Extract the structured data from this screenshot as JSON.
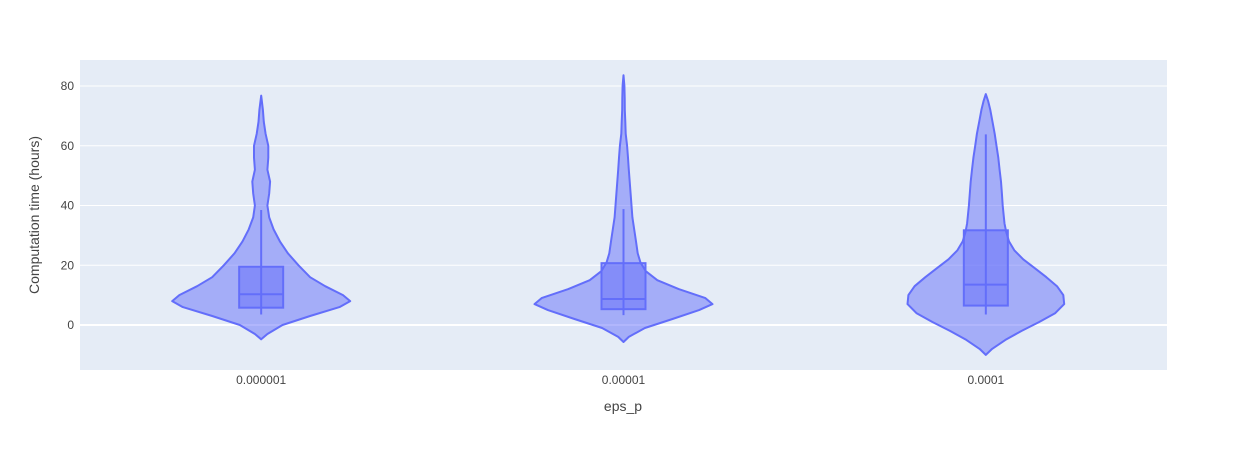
{
  "chart_data": {
    "type": "violin",
    "title": "",
    "xlabel": "eps_p",
    "ylabel": "Computation time (hours)",
    "ylim": [
      -15,
      88
    ],
    "yticks": [
      0,
      20,
      40,
      60,
      80
    ],
    "grid": true,
    "categories": [
      "0.000001",
      "0.00001",
      "0.0001"
    ],
    "colors": {
      "fill": "#636efa",
      "line": "#636efa",
      "plot_bg": "#e5ecf6",
      "grid": "#ffffff",
      "tick_text": "#444444"
    },
    "violins": [
      {
        "category": "0.000001",
        "box": {
          "q1": 5.8,
          "median": 10.3,
          "q3": 19.5,
          "whisker_low": 3.5,
          "whisker_high": 38.5
        },
        "kde_range": [
          -4.8,
          76.8
        ],
        "profile": [
          [
            -4.8,
            0.0
          ],
          [
            -3,
            0.07
          ],
          [
            0,
            0.24
          ],
          [
            3,
            0.55
          ],
          [
            6,
            0.88
          ],
          [
            8,
            1.0
          ],
          [
            10,
            0.92
          ],
          [
            13,
            0.72
          ],
          [
            16,
            0.55
          ],
          [
            20,
            0.42
          ],
          [
            24,
            0.3
          ],
          [
            28,
            0.21
          ],
          [
            32,
            0.14
          ],
          [
            36,
            0.09
          ],
          [
            40,
            0.07
          ],
          [
            44,
            0.09
          ],
          [
            48,
            0.1
          ],
          [
            52,
            0.07
          ],
          [
            56,
            0.08
          ],
          [
            60,
            0.08
          ],
          [
            64,
            0.05
          ],
          [
            68,
            0.03
          ],
          [
            72,
            0.02
          ],
          [
            76.8,
            0.0
          ]
        ]
      },
      {
        "category": "0.00001",
        "box": {
          "q1": 5.3,
          "median": 8.7,
          "q3": 20.7,
          "whisker_low": 3.3,
          "whisker_high": 38.8
        },
        "kde_range": [
          -5.7,
          83.6
        ],
        "profile": [
          [
            -5.7,
            0.0
          ],
          [
            -4,
            0.06
          ],
          [
            -1,
            0.24
          ],
          [
            2,
            0.55
          ],
          [
            5,
            0.85
          ],
          [
            7,
            1.0
          ],
          [
            9,
            0.92
          ],
          [
            12,
            0.62
          ],
          [
            15,
            0.38
          ],
          [
            18,
            0.25
          ],
          [
            21,
            0.19
          ],
          [
            24,
            0.16
          ],
          [
            28,
            0.14
          ],
          [
            32,
            0.12
          ],
          [
            36,
            0.1
          ],
          [
            40,
            0.09
          ],
          [
            44,
            0.08
          ],
          [
            48,
            0.07
          ],
          [
            52,
            0.06
          ],
          [
            56,
            0.05
          ],
          [
            60,
            0.04
          ],
          [
            64,
            0.025
          ],
          [
            68,
            0.02
          ],
          [
            72,
            0.015
          ],
          [
            76,
            0.013
          ],
          [
            80,
            0.01
          ],
          [
            83.6,
            0.0
          ]
        ]
      },
      {
        "category": "0.0001",
        "box": {
          "q1": 6.5,
          "median": 13.5,
          "q3": 31.7,
          "whisker_low": 3.5,
          "whisker_high": 63.8
        },
        "kde_range": [
          -10.0,
          77.3
        ],
        "profile": [
          [
            -10.0,
            0.0
          ],
          [
            -8,
            0.07
          ],
          [
            -5,
            0.22
          ],
          [
            -2,
            0.4
          ],
          [
            1,
            0.6
          ],
          [
            4,
            0.78
          ],
          [
            7,
            0.88
          ],
          [
            10,
            0.87
          ],
          [
            13,
            0.8
          ],
          [
            16,
            0.68
          ],
          [
            19,
            0.55
          ],
          [
            22,
            0.42
          ],
          [
            25,
            0.32
          ],
          [
            28,
            0.26
          ],
          [
            31,
            0.23
          ],
          [
            34,
            0.21
          ],
          [
            37,
            0.2
          ],
          [
            40,
            0.19
          ],
          [
            44,
            0.18
          ],
          [
            48,
            0.17
          ],
          [
            52,
            0.155
          ],
          [
            56,
            0.14
          ],
          [
            60,
            0.12
          ],
          [
            64,
            0.1
          ],
          [
            68,
            0.075
          ],
          [
            72,
            0.05
          ],
          [
            75,
            0.025
          ],
          [
            77.3,
            0.0
          ]
        ]
      }
    ]
  }
}
